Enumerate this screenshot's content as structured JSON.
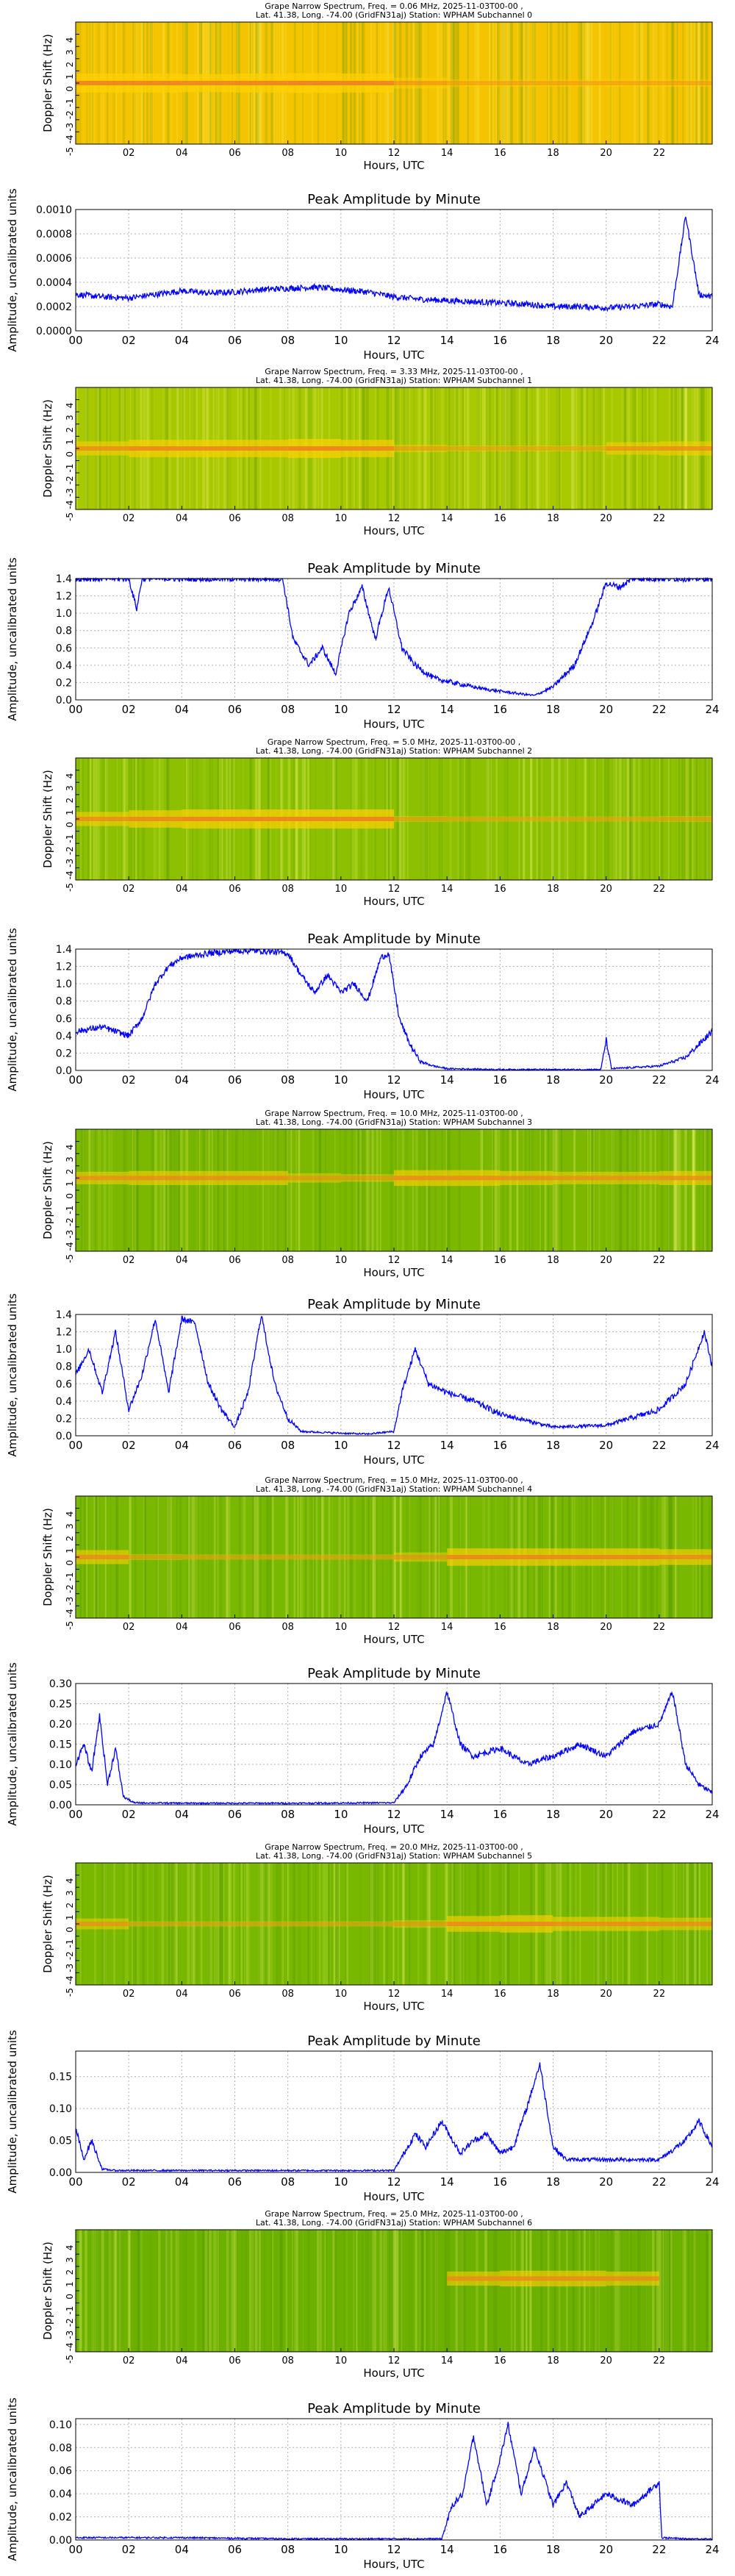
{
  "colors": {
    "line": "#0000ff",
    "grid": "#b0b0b0",
    "spectrogram_base": [
      "#f4c400",
      "#d6d000",
      "#a8c800",
      "#8cc000",
      "#7cb800",
      "#78b800",
      "#6cb000"
    ],
    "spectrogram_band": "#f08020"
  },
  "chart_data": [
    {
      "type": "heatmap",
      "title": "Grape Narrow Spectrum, Freq. = 0.06 MHz, 2025-11-03T00-00 ,\nLat.  41.38, Long. -74.00 (GridFN31aj) Station: WPHAM Subchannel 0",
      "title_lines": [
        "Grape Narrow Spectrum, Freq. = 0.06 MHz, 2025-11-03T00-00 ,",
        "Lat.  41.38, Long. -74.00 (GridFN31aj) Station: WPHAM Subchannel 0"
      ],
      "xlabel": "Hours, UTC",
      "ylabel": "Doppler Shift (Hz)",
      "xlim": [
        0,
        24
      ],
      "ylim": [
        -5,
        5
      ],
      "xticks": [
        "02",
        "04",
        "06",
        "08",
        "10",
        "12",
        "14",
        "16",
        "18",
        "20",
        "22"
      ],
      "yticks": [
        "4",
        "3",
        "2",
        "1",
        "0",
        "-1",
        "-2",
        "-3",
        "-4",
        "-5"
      ],
      "band_center_hz": 0,
      "band_strength": [
        0.9,
        0.9,
        0.85,
        0.9,
        0.95,
        0.9,
        0.4,
        0.2,
        0.2,
        0.2,
        0.2,
        0.2
      ],
      "background": 0
    },
    {
      "type": "line",
      "title": "Peak Amplitude by Minute",
      "xlabel": "Hours, UTC",
      "ylabel": "Amplitude, uncalibrated units",
      "xlim": [
        0,
        24
      ],
      "ylim": [
        0,
        0.001
      ],
      "xticks": [
        "00",
        "02",
        "04",
        "06",
        "08",
        "10",
        "12",
        "14",
        "16",
        "18",
        "20",
        "22",
        "24"
      ],
      "yticks": [
        "0.0000",
        "0.0002",
        "0.0004",
        "0.0006",
        "0.0008",
        "0.0010"
      ],
      "grid": true,
      "x": [
        0,
        1,
        2,
        3,
        4,
        5,
        6,
        7,
        8,
        9,
        10,
        11,
        12,
        13,
        14,
        15,
        16,
        17,
        18,
        19,
        20,
        21,
        22,
        22.5,
        23,
        23.5,
        24
      ],
      "y": [
        0.0003,
        0.00028,
        0.00027,
        0.0003,
        0.00033,
        0.00031,
        0.00032,
        0.00034,
        0.00035,
        0.00036,
        0.00034,
        0.00032,
        0.00028,
        0.00026,
        0.00025,
        0.00024,
        0.00023,
        0.00022,
        0.0002,
        0.0002,
        0.00019,
        0.0002,
        0.00022,
        0.0002,
        0.00095,
        0.0003,
        0.00028
      ]
    },
    {
      "type": "heatmap",
      "title_lines": [
        "Grape Narrow Spectrum, Freq. = 3.33 MHz, 2025-11-03T00-00 ,",
        "Lat.  41.38, Long. -74.00 (GridFN31aj) Station: WPHAM Subchannel 1"
      ],
      "xlabel": "Hours, UTC",
      "ylabel": "Doppler Shift (Hz)",
      "xlim": [
        0,
        24
      ],
      "ylim": [
        -5,
        5
      ],
      "xticks": [
        "02",
        "04",
        "06",
        "08",
        "10",
        "12",
        "14",
        "16",
        "18",
        "20",
        "22"
      ],
      "yticks": [
        "4",
        "3",
        "2",
        "1",
        "0",
        "-1",
        "-2",
        "-3",
        "-4",
        "-5"
      ],
      "band_center_hz": 0,
      "band_strength": [
        0.6,
        0.8,
        0.8,
        0.8,
        0.9,
        0.8,
        0.2,
        0.1,
        0.1,
        0.1,
        0.5,
        0.6
      ],
      "background": 2
    },
    {
      "type": "line",
      "title": "Peak Amplitude by Minute",
      "xlabel": "Hours, UTC",
      "ylabel": "Amplitude, uncalibrated units",
      "xlim": [
        0,
        24
      ],
      "ylim": [
        0,
        1.4
      ],
      "xticks": [
        "00",
        "02",
        "04",
        "06",
        "08",
        "10",
        "12",
        "14",
        "16",
        "18",
        "20",
        "22",
        "24"
      ],
      "yticks": [
        "0.0",
        "0.2",
        "0.4",
        "0.6",
        "0.8",
        "1.0",
        "1.2",
        "1.4"
      ],
      "grid": true,
      "x": [
        0,
        2,
        2.3,
        2.5,
        4,
        6,
        7.8,
        8.2,
        8.8,
        9.3,
        9.8,
        10.3,
        10.8,
        11.3,
        11.8,
        12.3,
        12.8,
        13.5,
        14.5,
        15.5,
        16.5,
        17.3,
        18,
        18.8,
        19.5,
        20,
        20.5,
        21,
        22,
        23,
        24
      ],
      "y": [
        1.4,
        1.4,
        1.05,
        1.4,
        1.4,
        1.4,
        1.4,
        0.7,
        0.4,
        0.6,
        0.3,
        1.0,
        1.3,
        0.7,
        1.3,
        0.6,
        0.4,
        0.25,
        0.18,
        0.12,
        0.08,
        0.05,
        0.15,
        0.4,
        0.9,
        1.35,
        1.3,
        1.4,
        1.4,
        1.4,
        1.4
      ]
    },
    {
      "type": "heatmap",
      "title_lines": [
        "Grape Narrow Spectrum, Freq. = 5.0 MHz, 2025-11-03T00-00 ,",
        "Lat.  41.38, Long. -74.00 (GridFN31aj) Station: WPHAM Subchannel 2"
      ],
      "xlabel": "Hours, UTC",
      "ylabel": "Doppler Shift (Hz)",
      "xlim": [
        0,
        24
      ],
      "ylim": [
        -5,
        5
      ],
      "xticks": [
        "02",
        "04",
        "06",
        "08",
        "10",
        "12",
        "14",
        "16",
        "18",
        "20",
        "22"
      ],
      "yticks": [
        "4",
        "3",
        "2",
        "1",
        "0",
        "-1",
        "-2",
        "-3",
        "-4",
        "-5"
      ],
      "band_center_hz": 0,
      "band_strength": [
        0.6,
        0.8,
        0.9,
        0.9,
        0.9,
        0.9,
        0.1,
        0.05,
        0.05,
        0.05,
        0.05,
        0.1
      ],
      "background": 3
    },
    {
      "type": "line",
      "title": "Peak Amplitude by Minute",
      "xlabel": "Hours, UTC",
      "ylabel": "Amplitude, uncalibrated units",
      "xlim": [
        0,
        24
      ],
      "ylim": [
        0,
        1.4
      ],
      "xticks": [
        "00",
        "02",
        "04",
        "06",
        "08",
        "10",
        "12",
        "14",
        "16",
        "18",
        "20",
        "22",
        "24"
      ],
      "yticks": [
        "0.0",
        "0.2",
        "0.4",
        "0.6",
        "0.8",
        "1.0",
        "1.2",
        "1.4"
      ],
      "grid": true,
      "x": [
        0,
        1,
        2,
        2.5,
        3,
        3.5,
        4,
        5,
        6,
        7,
        8,
        8.5,
        9,
        9.5,
        10,
        10.5,
        11,
        11.5,
        11.8,
        12.2,
        12.6,
        13,
        13.5,
        14,
        16,
        18,
        19.8,
        20,
        20.2,
        22,
        23,
        24
      ],
      "y": [
        0.45,
        0.5,
        0.4,
        0.6,
        1.0,
        1.2,
        1.3,
        1.35,
        1.38,
        1.38,
        1.35,
        1.1,
        0.9,
        1.1,
        0.9,
        1.0,
        0.8,
        1.3,
        1.35,
        0.6,
        0.3,
        0.1,
        0.05,
        0.02,
        0.01,
        0.01,
        0.01,
        0.35,
        0.02,
        0.05,
        0.15,
        0.45
      ]
    },
    {
      "type": "heatmap",
      "title_lines": [
        "Grape Narrow Spectrum, Freq. = 10.0 MHz, 2025-11-03T00-00 ,",
        "Lat.  41.38, Long. -74.00 (GridFN31aj) Station: WPHAM Subchannel 3"
      ],
      "xlabel": "Hours, UTC",
      "ylabel": "Doppler Shift (Hz)",
      "xlim": [
        0,
        24
      ],
      "ylim": [
        -5,
        5
      ],
      "xticks": [
        "02",
        "04",
        "06",
        "08",
        "10",
        "12",
        "14",
        "16",
        "18",
        "20",
        "22"
      ],
      "yticks": [
        "4",
        "3",
        "2",
        "1",
        "0",
        "-1",
        "-2",
        "-3",
        "-4",
        "-5"
      ],
      "band_center_hz": 1,
      "band_strength": [
        0.5,
        0.6,
        0.6,
        0.6,
        0.3,
        0.2,
        0.7,
        0.7,
        0.6,
        0.5,
        0.5,
        0.6
      ],
      "background": 4
    },
    {
      "type": "line",
      "title": "Peak Amplitude by Minute",
      "xlabel": "Hours, UTC",
      "ylabel": "Amplitude, uncalibrated units",
      "xlim": [
        0,
        24
      ],
      "ylim": [
        0,
        1.4
      ],
      "xticks": [
        "00",
        "02",
        "04",
        "06",
        "08",
        "10",
        "12",
        "14",
        "16",
        "18",
        "20",
        "22",
        "24"
      ],
      "yticks": [
        "0.0",
        "0.2",
        "0.4",
        "0.6",
        "0.8",
        "1.0",
        "1.2",
        "1.4"
      ],
      "grid": true,
      "x": [
        0,
        0.5,
        1,
        1.5,
        2,
        2.5,
        3,
        3.5,
        4,
        4.5,
        5,
        5.5,
        6,
        6.5,
        7,
        7.5,
        8,
        8.5,
        10,
        11,
        12,
        12.3,
        12.8,
        13.3,
        14,
        15,
        16,
        18,
        20,
        22,
        23,
        23.7,
        24
      ],
      "y": [
        0.7,
        1.0,
        0.5,
        1.2,
        0.3,
        0.7,
        1.35,
        0.5,
        1.35,
        1.3,
        0.6,
        0.3,
        0.1,
        0.5,
        1.4,
        0.6,
        0.2,
        0.05,
        0.03,
        0.02,
        0.05,
        0.5,
        1.0,
        0.6,
        0.5,
        0.4,
        0.25,
        0.1,
        0.12,
        0.3,
        0.6,
        1.2,
        0.8
      ]
    },
    {
      "type": "heatmap",
      "title_lines": [
        "Grape Narrow Spectrum, Freq. = 15.0 MHz, 2025-11-03T00-00 ,",
        "Lat.  41.38, Long. -74.00 (GridFN31aj) Station: WPHAM Subchannel 4"
      ],
      "xlabel": "Hours, UTC",
      "ylabel": "Doppler Shift (Hz)",
      "xlim": [
        0,
        24
      ],
      "ylim": [
        -5,
        5
      ],
      "xticks": [
        "02",
        "04",
        "06",
        "08",
        "10",
        "12",
        "14",
        "16",
        "18",
        "20",
        "22"
      ],
      "yticks": [
        "4",
        "3",
        "2",
        "1",
        "0",
        "-1",
        "-2",
        "-3",
        "-4",
        "-5"
      ],
      "band_center_hz": 0,
      "band_strength": [
        0.6,
        0.1,
        0.05,
        0.05,
        0.05,
        0.05,
        0.3,
        0.8,
        0.8,
        0.8,
        0.8,
        0.7
      ],
      "background": 5
    },
    {
      "type": "line",
      "title": "Peak Amplitude by Minute",
      "xlabel": "Hours, UTC",
      "ylabel": "Amplitude, uncalibrated units",
      "xlim": [
        0,
        24
      ],
      "ylim": [
        0,
        0.3
      ],
      "xticks": [
        "00",
        "02",
        "04",
        "06",
        "08",
        "10",
        "12",
        "14",
        "16",
        "18",
        "20",
        "22",
        "24"
      ],
      "yticks": [
        "0.00",
        "0.05",
        "0.10",
        "0.15",
        "0.20",
        "0.25",
        "0.30"
      ],
      "grid": true,
      "x": [
        0,
        0.3,
        0.6,
        0.9,
        1.2,
        1.5,
        1.8,
        2.2,
        4,
        8,
        12,
        12.5,
        13,
        13.5,
        14,
        14.5,
        15,
        16,
        17,
        18,
        19,
        20,
        21,
        22,
        22.5,
        23,
        23.5,
        24
      ],
      "y": [
        0.1,
        0.15,
        0.08,
        0.22,
        0.05,
        0.14,
        0.02,
        0.005,
        0.004,
        0.004,
        0.005,
        0.05,
        0.12,
        0.15,
        0.28,
        0.15,
        0.12,
        0.14,
        0.1,
        0.12,
        0.15,
        0.12,
        0.18,
        0.2,
        0.28,
        0.1,
        0.05,
        0.03
      ]
    },
    {
      "type": "heatmap",
      "title_lines": [
        "Grape Narrow Spectrum, Freq. = 20.0 MHz, 2025-11-03T00-00 ,",
        "Lat.  41.38, Long. -74.00 (GridFN31aj) Station: WPHAM Subchannel 5"
      ],
      "xlabel": "Hours, UTC",
      "ylabel": "Doppler Shift (Hz)",
      "xlim": [
        0,
        24
      ],
      "ylim": [
        -5,
        5
      ],
      "xticks": [
        "02",
        "04",
        "06",
        "08",
        "10",
        "12",
        "14",
        "16",
        "18",
        "20",
        "22"
      ],
      "yticks": [
        "4",
        "3",
        "2",
        "1",
        "0",
        "-1",
        "-2",
        "-3",
        "-4",
        "-5"
      ],
      "band_center_hz": 0,
      "band_strength": [
        0.4,
        0.05,
        0.05,
        0.05,
        0.05,
        0.05,
        0.2,
        0.7,
        0.8,
        0.6,
        0.6,
        0.5
      ],
      "background": 5
    },
    {
      "type": "line",
      "title": "Peak Amplitude by Minute",
      "xlabel": "Hours, UTC",
      "ylabel": "Amplitude, uncalibrated units",
      "xlim": [
        0,
        24
      ],
      "ylim": [
        0,
        0.19
      ],
      "xticks": [
        "00",
        "02",
        "04",
        "06",
        "08",
        "10",
        "12",
        "14",
        "16",
        "18",
        "20",
        "22",
        "24"
      ],
      "yticks": [
        "0.00",
        "0.05",
        "0.10",
        "0.15"
      ],
      "grid": true,
      "x": [
        0,
        0.3,
        0.6,
        1,
        1.5,
        4,
        8,
        12,
        12.8,
        13.2,
        13.8,
        14.5,
        15,
        15.5,
        16,
        16.5,
        17,
        17.5,
        18,
        18.5,
        19,
        20,
        21,
        22,
        23,
        23.5,
        24
      ],
      "y": [
        0.07,
        0.02,
        0.05,
        0.005,
        0.003,
        0.003,
        0.003,
        0.003,
        0.06,
        0.04,
        0.08,
        0.03,
        0.05,
        0.06,
        0.03,
        0.04,
        0.1,
        0.17,
        0.04,
        0.02,
        0.02,
        0.02,
        0.02,
        0.02,
        0.05,
        0.08,
        0.04
      ]
    },
    {
      "type": "heatmap",
      "title_lines": [
        "Grape Narrow Spectrum, Freq. = 25.0 MHz, 2025-11-03T00-00 ,",
        "Lat.  41.38, Long. -74.00 (GridFN31aj) Station: WPHAM Subchannel 6"
      ],
      "xlabel": "Hours, UTC",
      "ylabel": "Doppler Shift (Hz)",
      "xlim": [
        0,
        24
      ],
      "ylim": [
        -5,
        5
      ],
      "xticks": [
        "02",
        "04",
        "06",
        "08",
        "10",
        "12",
        "14",
        "16",
        "18",
        "20",
        "22"
      ],
      "yticks": [
        "4",
        "3",
        "2",
        "1",
        "0",
        "-1",
        "-2",
        "-3",
        "-4",
        "-5"
      ],
      "band_center_hz": 1,
      "band_strength": [
        0.0,
        0.0,
        0.0,
        0.0,
        0.0,
        0.0,
        0.0,
        0.6,
        0.7,
        0.7,
        0.6,
        0.0
      ],
      "background": 6
    },
    {
      "type": "line",
      "title": "Peak Amplitude by Minute",
      "xlabel": "Hours, UTC",
      "ylabel": "Amplitude, uncalibrated units",
      "xlim": [
        0,
        24
      ],
      "ylim": [
        0,
        0.105
      ],
      "xticks": [
        "00",
        "02",
        "04",
        "06",
        "08",
        "10",
        "12",
        "14",
        "16",
        "18",
        "20",
        "22",
        "24"
      ],
      "yticks": [
        "0.00",
        "0.02",
        "0.04",
        "0.06",
        "0.08",
        "0.10"
      ],
      "grid": true,
      "x": [
        0,
        4,
        8,
        12,
        13.8,
        14.2,
        14.6,
        15,
        15.5,
        16,
        16.3,
        16.8,
        17.3,
        18,
        18.5,
        19,
        20,
        21,
        22,
        22.1,
        23,
        24
      ],
      "y": [
        0.002,
        0.002,
        0.001,
        0.001,
        0.001,
        0.03,
        0.04,
        0.09,
        0.03,
        0.07,
        0.1,
        0.04,
        0.08,
        0.03,
        0.05,
        0.02,
        0.04,
        0.03,
        0.05,
        0.002,
        0.001,
        0.001
      ]
    }
  ]
}
